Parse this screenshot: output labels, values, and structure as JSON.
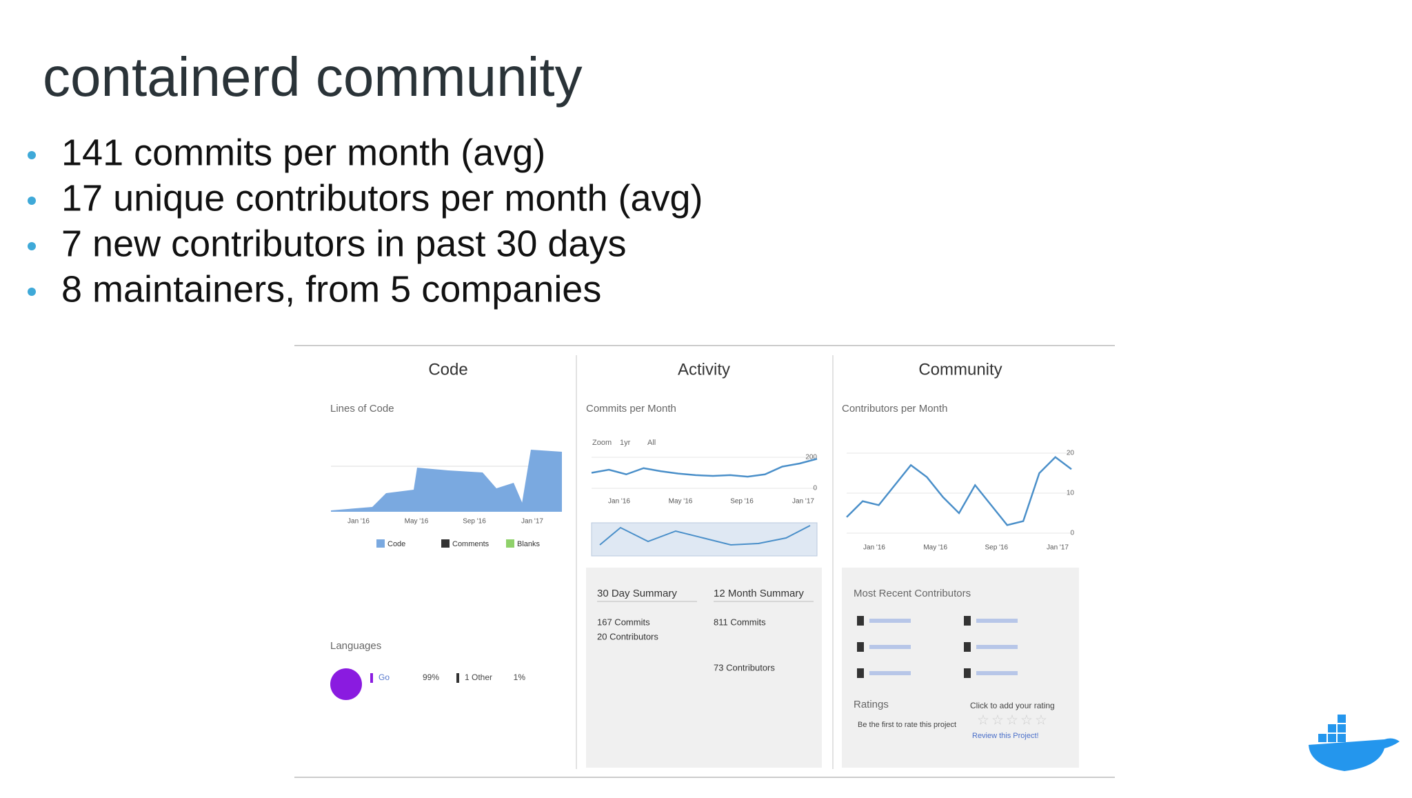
{
  "title": "containerd community",
  "bullets": [
    "141 commits per month (avg)",
    "17 unique contributors per month (avg)",
    "7 new contributors in past 30 days",
    "8 maintainers, from 5 companies"
  ],
  "panel": {
    "code": {
      "heading": "Code",
      "subtitle": "Lines of Code",
      "x_labels": [
        "Jan '16",
        "May '16",
        "Sep '16",
        "Jan '17"
      ],
      "legend": [
        {
          "name": "Code",
          "color": "#7aa9e0"
        },
        {
          "name": "Comments",
          "color": "#333333"
        },
        {
          "name": "Blanks",
          "color": "#8fd16a"
        }
      ],
      "languages_label": "Languages",
      "languages": [
        {
          "name": "Go",
          "share": "99%"
        },
        {
          "name": "1 Other",
          "share": "1%"
        }
      ]
    },
    "activity": {
      "heading": "Activity",
      "zoom": [
        "Zoom",
        "1yr",
        "All"
      ],
      "chart_data": {
        "type": "line",
        "title": "Commits per Month",
        "x_labels": [
          "Jan '16",
          "May '16",
          "Sep '16",
          "Jan '17"
        ],
        "values": [
          100,
          120,
          90,
          130,
          110,
          95,
          85,
          80,
          85,
          75,
          90,
          140,
          160,
          190
        ],
        "ylim": [
          0,
          200
        ],
        "yticks": [
          0,
          200
        ],
        "color": "#4a8fc9"
      },
      "summary_30": {
        "title": "30 Day Summary",
        "commits": "167 Commits",
        "contributors": "20 Contributors"
      },
      "summary_12": {
        "title": "12 Month Summary",
        "commits": "811 Commits",
        "contributors": "73 Contributors"
      }
    },
    "community": {
      "heading": "Community",
      "chart_data": {
        "type": "line",
        "title": "Contributors per Month",
        "x_labels": [
          "Jan '16",
          "May '16",
          "Sep '16",
          "Jan '17"
        ],
        "values": [
          4,
          8,
          7,
          12,
          17,
          14,
          9,
          5,
          12,
          7,
          2,
          3,
          15,
          19,
          16
        ],
        "ylim": [
          0,
          20
        ],
        "yticks": [
          0,
          10,
          20
        ],
        "color": "#4a8fc9"
      },
      "recent_title": "Most Recent Contributors",
      "ratings": "Ratings",
      "rate_first": "Be the first to rate this project",
      "add_rating": "Click to add your rating",
      "review": "Review this Project!"
    }
  }
}
